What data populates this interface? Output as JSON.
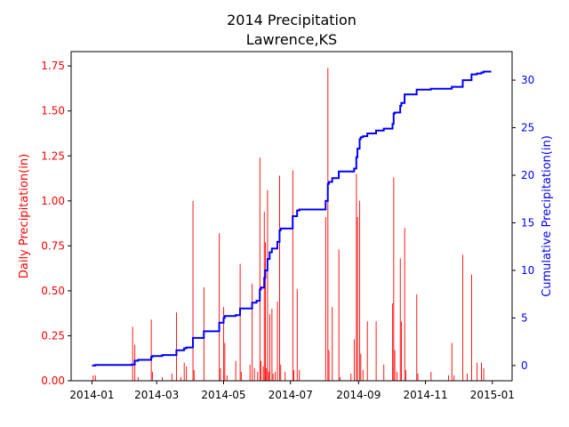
{
  "chart_data": {
    "type": "bar",
    "title": "2014 Precipitation",
    "subtitle": "Lawrence,KS",
    "xlabel": "",
    "ylabel_left": "Daily Precipitation(in)",
    "ylabel_right": "Cumulative Precipitation(in)",
    "x_ticks": [
      "2014-01",
      "2014-03",
      "2014-05",
      "2014-07",
      "2014-09",
      "2014-11",
      "2015-01"
    ],
    "y_ticks_left": [
      "0.00",
      "0.25",
      "0.50",
      "0.75",
      "1.00",
      "1.25",
      "1.50",
      "1.75"
    ],
    "y_ticks_right": [
      "0",
      "5",
      "10",
      "15",
      "20",
      "25",
      "30"
    ],
    "xlim": [
      "2013-12-13",
      "2015-01-19"
    ],
    "ylim_left": [
      0,
      1.83
    ],
    "ylim_right": [
      -1.6,
      33.0
    ],
    "grid": false,
    "colors": {
      "daily": "#ff0000",
      "cumulative": "#0000ff",
      "left_axis": "#ff0000",
      "right_axis": "#0000ff"
    },
    "series": [
      {
        "name": "Daily Precipitation",
        "kind": "bar",
        "points": [
          [
            "2014-01-02",
            0.03
          ],
          [
            "2014-01-04",
            0.03
          ],
          [
            "2014-02-07",
            0.3
          ],
          [
            "2014-02-09",
            0.2
          ],
          [
            "2014-02-12",
            0.02
          ],
          [
            "2014-02-24",
            0.34
          ],
          [
            "2014-02-25",
            0.05
          ],
          [
            "2014-03-06",
            0.02
          ],
          [
            "2014-03-15",
            0.04
          ],
          [
            "2014-03-19",
            0.38
          ],
          [
            "2014-03-23",
            0.02
          ],
          [
            "2014-03-26",
            0.1
          ],
          [
            "2014-03-28",
            0.08
          ],
          [
            "2014-04-03",
            1.0
          ],
          [
            "2014-04-04",
            0.06
          ],
          [
            "2014-04-13",
            0.52
          ],
          [
            "2014-04-27",
            0.82
          ],
          [
            "2014-04-28",
            0.07
          ],
          [
            "2014-05-01",
            0.41
          ],
          [
            "2014-05-02",
            0.21
          ],
          [
            "2014-05-04",
            0.03
          ],
          [
            "2014-05-12",
            0.11
          ],
          [
            "2014-05-16",
            0.65
          ],
          [
            "2014-05-17",
            0.05
          ],
          [
            "2014-05-25",
            0.09
          ],
          [
            "2014-05-27",
            0.54
          ],
          [
            "2014-05-29",
            0.07
          ],
          [
            "2014-06-01",
            0.05
          ],
          [
            "2014-06-03",
            1.24
          ],
          [
            "2014-06-04",
            0.11
          ],
          [
            "2014-06-06",
            0.08
          ],
          [
            "2014-06-07",
            0.94
          ],
          [
            "2014-06-08",
            0.77
          ],
          [
            "2014-06-09",
            0.07
          ],
          [
            "2014-06-10",
            1.06
          ],
          [
            "2014-06-11",
            0.05
          ],
          [
            "2014-06-12",
            0.37
          ],
          [
            "2014-06-14",
            0.4
          ],
          [
            "2014-06-15",
            0.04
          ],
          [
            "2014-06-17",
            0.05
          ],
          [
            "2014-06-19",
            0.44
          ],
          [
            "2014-06-21",
            1.14
          ],
          [
            "2014-06-22",
            0.09
          ],
          [
            "2014-06-26",
            0.05
          ],
          [
            "2014-07-03",
            1.17
          ],
          [
            "2014-07-04",
            0.06
          ],
          [
            "2014-07-07",
            0.51
          ],
          [
            "2014-07-09",
            0.06
          ],
          [
            "2014-08-02",
            0.91
          ],
          [
            "2014-08-04",
            1.74
          ],
          [
            "2014-08-05",
            0.17
          ],
          [
            "2014-08-08",
            0.41
          ],
          [
            "2014-08-14",
            0.73
          ],
          [
            "2014-08-15",
            0.02
          ],
          [
            "2014-08-25",
            0.04
          ],
          [
            "2014-08-28",
            0.23
          ],
          [
            "2014-08-30",
            1.15
          ],
          [
            "2014-08-31",
            0.91
          ],
          [
            "2014-09-02",
            1.0
          ],
          [
            "2014-09-03",
            0.15
          ],
          [
            "2014-09-05",
            0.06
          ],
          [
            "2014-09-09",
            0.33
          ],
          [
            "2014-09-17",
            0.33
          ],
          [
            "2014-09-24",
            0.09
          ],
          [
            "2014-10-02",
            0.43
          ],
          [
            "2014-10-03",
            1.13
          ],
          [
            "2014-10-04",
            0.17
          ],
          [
            "2014-10-06",
            0.05
          ],
          [
            "2014-10-09",
            0.68
          ],
          [
            "2014-10-10",
            0.33
          ],
          [
            "2014-10-13",
            0.85
          ],
          [
            "2014-10-14",
            0.06
          ],
          [
            "2014-10-24",
            0.48
          ],
          [
            "2014-10-25",
            0.04
          ],
          [
            "2014-11-06",
            0.05
          ],
          [
            "2014-11-22",
            0.03
          ],
          [
            "2014-11-25",
            0.21
          ],
          [
            "2014-11-27",
            0.03
          ],
          [
            "2014-12-05",
            0.7
          ],
          [
            "2014-12-09",
            0.04
          ],
          [
            "2014-12-13",
            0.59
          ],
          [
            "2014-12-18",
            0.1
          ],
          [
            "2014-12-22",
            0.1
          ],
          [
            "2014-12-24",
            0.07
          ]
        ]
      },
      {
        "name": "Cumulative Precipitation",
        "kind": "step-line",
        "points": [
          [
            "2014-01-01",
            0.0
          ],
          [
            "2014-01-04",
            0.06
          ],
          [
            "2014-02-06",
            0.1
          ],
          [
            "2014-02-09",
            0.5
          ],
          [
            "2014-02-12",
            0.6
          ],
          [
            "2014-02-24",
            0.9
          ],
          [
            "2014-02-25",
            1.0
          ],
          [
            "2014-03-06",
            1.1
          ],
          [
            "2014-03-19",
            1.6
          ],
          [
            "2014-03-26",
            1.8
          ],
          [
            "2014-03-28",
            1.9
          ],
          [
            "2014-04-03",
            2.9
          ],
          [
            "2014-04-13",
            3.6
          ],
          [
            "2014-04-27",
            4.5
          ],
          [
            "2014-05-01",
            5.0
          ],
          [
            "2014-05-02",
            5.2
          ],
          [
            "2014-05-12",
            5.3
          ],
          [
            "2014-05-16",
            6.0
          ],
          [
            "2014-05-27",
            6.6
          ],
          [
            "2014-05-31",
            6.8
          ],
          [
            "2014-06-03",
            8.0
          ],
          [
            "2014-06-04",
            8.2
          ],
          [
            "2014-06-07",
            9.2
          ],
          [
            "2014-06-08",
            10.0
          ],
          [
            "2014-06-10",
            11.2
          ],
          [
            "2014-06-12",
            11.9
          ],
          [
            "2014-06-14",
            12.3
          ],
          [
            "2014-06-19",
            13.0
          ],
          [
            "2014-06-21",
            14.2
          ],
          [
            "2014-06-22",
            14.4
          ],
          [
            "2014-07-03",
            15.7
          ],
          [
            "2014-07-07",
            16.3
          ],
          [
            "2014-07-09",
            16.4
          ],
          [
            "2014-08-02",
            17.3
          ],
          [
            "2014-08-04",
            19.1
          ],
          [
            "2014-08-05",
            19.3
          ],
          [
            "2014-08-08",
            19.7
          ],
          [
            "2014-08-14",
            20.4
          ],
          [
            "2014-08-28",
            20.7
          ],
          [
            "2014-08-30",
            21.9
          ],
          [
            "2014-08-31",
            22.8
          ],
          [
            "2014-09-02",
            23.8
          ],
          [
            "2014-09-03",
            24.0
          ],
          [
            "2014-09-05",
            24.1
          ],
          [
            "2014-09-09",
            24.4
          ],
          [
            "2014-09-17",
            24.7
          ],
          [
            "2014-09-24",
            24.9
          ],
          [
            "2014-10-02",
            25.4
          ],
          [
            "2014-10-03",
            26.5
          ],
          [
            "2014-10-04",
            26.6
          ],
          [
            "2014-10-09",
            27.3
          ],
          [
            "2014-10-10",
            27.6
          ],
          [
            "2014-10-13",
            28.5
          ],
          [
            "2014-10-24",
            29.0
          ],
          [
            "2014-11-06",
            29.1
          ],
          [
            "2014-11-25",
            29.3
          ],
          [
            "2014-12-05",
            30.0
          ],
          [
            "2014-12-13",
            30.6
          ],
          [
            "2014-12-18",
            30.7
          ],
          [
            "2014-12-22",
            30.8
          ],
          [
            "2014-12-24",
            30.9
          ],
          [
            "2014-12-31",
            30.9
          ]
        ]
      }
    ]
  }
}
